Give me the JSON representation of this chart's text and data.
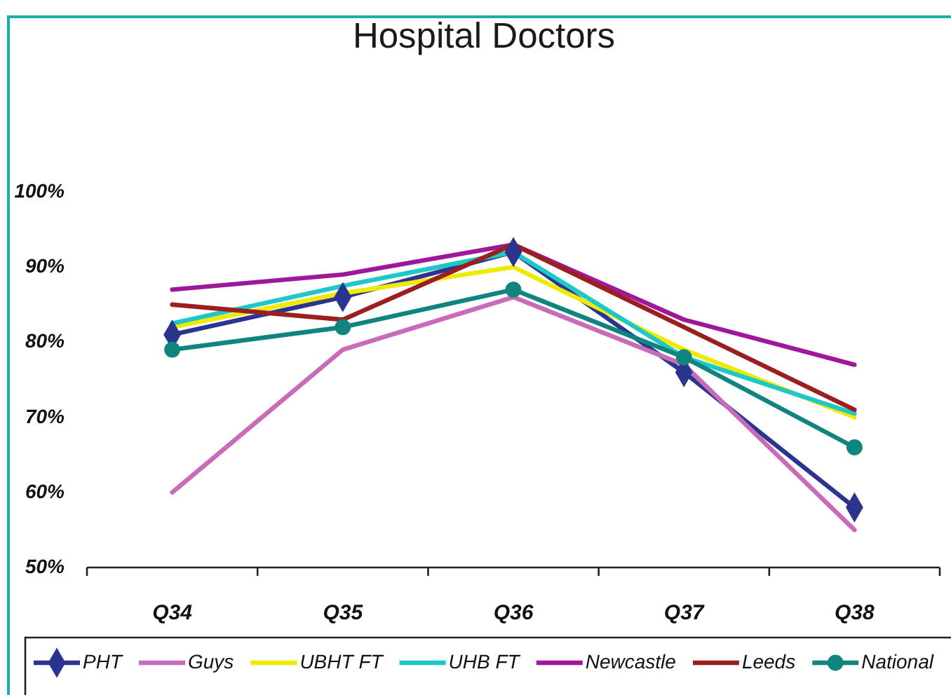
{
  "chart_data": {
    "type": "line",
    "title": "Hospital Doctors",
    "categories": [
      "Q34",
      "Q35",
      "Q36",
      "Q37",
      "Q38"
    ],
    "ylim": [
      50,
      100
    ],
    "yticks": [
      {
        "value": 50,
        "label": "50%"
      },
      {
        "value": 60,
        "label": "60%"
      },
      {
        "value": 70,
        "label": "70%"
      },
      {
        "value": 80,
        "label": "80%"
      },
      {
        "value": 90,
        "label": "90%"
      },
      {
        "value": 100,
        "label": "100%"
      }
    ],
    "legend": "bottom",
    "line_style": "solid",
    "series": [
      {
        "name": "PHT",
        "color": "#2b3590",
        "marker": "diamond",
        "values": [
          81,
          86,
          92,
          76,
          58
        ]
      },
      {
        "name": "Guys",
        "color": "#c86bb8",
        "marker": "none",
        "values": [
          60,
          79,
          86,
          77,
          55
        ]
      },
      {
        "name": "UBHT FT",
        "color": "#eeea00",
        "marker": "none",
        "values": [
          82,
          86.5,
          90,
          79,
          70
        ]
      },
      {
        "name": "UHB FT",
        "color": "#1ec8c8",
        "marker": "none",
        "values": [
          82.5,
          87.5,
          92,
          78,
          70.5
        ]
      },
      {
        "name": "Newcastle",
        "color": "#a0189a",
        "marker": "none",
        "values": [
          87,
          89,
          93,
          83,
          77
        ]
      },
      {
        "name": "Leeds",
        "color": "#9b1f1f",
        "marker": "none",
        "values": [
          85,
          83,
          93,
          82,
          71
        ]
      },
      {
        "name": "National",
        "color": "#10847e",
        "marker": "circle",
        "values": [
          79,
          82,
          87,
          78,
          66
        ]
      }
    ]
  }
}
